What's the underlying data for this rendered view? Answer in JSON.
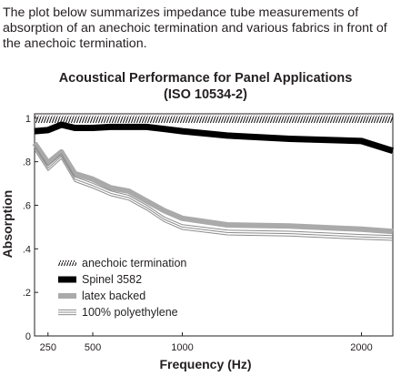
{
  "intro": "The plot below summarizes impedance tube measurements of absorption of an anechoic termination and various fabrics in front of the anechoic termination.",
  "chart_data": {
    "type": "line",
    "title": "Acoustical Performance for Panel Applications",
    "subtitle": "(ISO 10534-2)",
    "xlabel": "Frequency (Hz)",
    "ylabel": "Absorption",
    "x_scale": "linear",
    "xlim": [
      175,
      2175
    ],
    "ylim": [
      0,
      1.02
    ],
    "x_ticks": [
      250,
      500,
      1000,
      2000
    ],
    "x_tick_labels": [
      "250",
      "500",
      "1000",
      "2000"
    ],
    "y_ticks": [
      0,
      0.2,
      0.4,
      0.6,
      0.8,
      1
    ],
    "y_tick_labels": [
      "0",
      ".2",
      ".4",
      ".6",
      ".8",
      "1"
    ],
    "grid": false,
    "legend_position": "bottom-left",
    "x": [
      175,
      250,
      325,
      400,
      500,
      600,
      700,
      800,
      900,
      1000,
      1250,
      1600,
      2000,
      2175
    ],
    "series": [
      {
        "name": "anechoic termination",
        "style": "hatched",
        "color": "#231f20",
        "values": [
          0.995,
          0.995,
          0.995,
          0.995,
          0.995,
          0.995,
          0.995,
          0.995,
          0.995,
          0.995,
          0.995,
          0.995,
          0.995,
          0.995
        ]
      },
      {
        "name": "Spinel 3582",
        "style": "thick",
        "color": "#000000",
        "values": [
          0.94,
          0.945,
          0.97,
          0.955,
          0.955,
          0.96,
          0.96,
          0.96,
          0.95,
          0.94,
          0.92,
          0.905,
          0.895,
          0.85
        ]
      },
      {
        "name": "latex backed",
        "style": "gray",
        "color": "#aaaaaa",
        "values": [
          0.885,
          0.795,
          0.845,
          0.745,
          0.72,
          0.68,
          0.665,
          0.62,
          0.575,
          0.54,
          0.51,
          0.505,
          0.49,
          0.48
        ]
      },
      {
        "name": "100% polyethylene",
        "style": "triple-line",
        "color": "#8c8c8c",
        "values": [
          0.865,
          0.77,
          0.825,
          0.72,
          0.69,
          0.655,
          0.635,
          0.59,
          0.535,
          0.5,
          0.475,
          0.47,
          0.455,
          0.45
        ]
      }
    ]
  }
}
